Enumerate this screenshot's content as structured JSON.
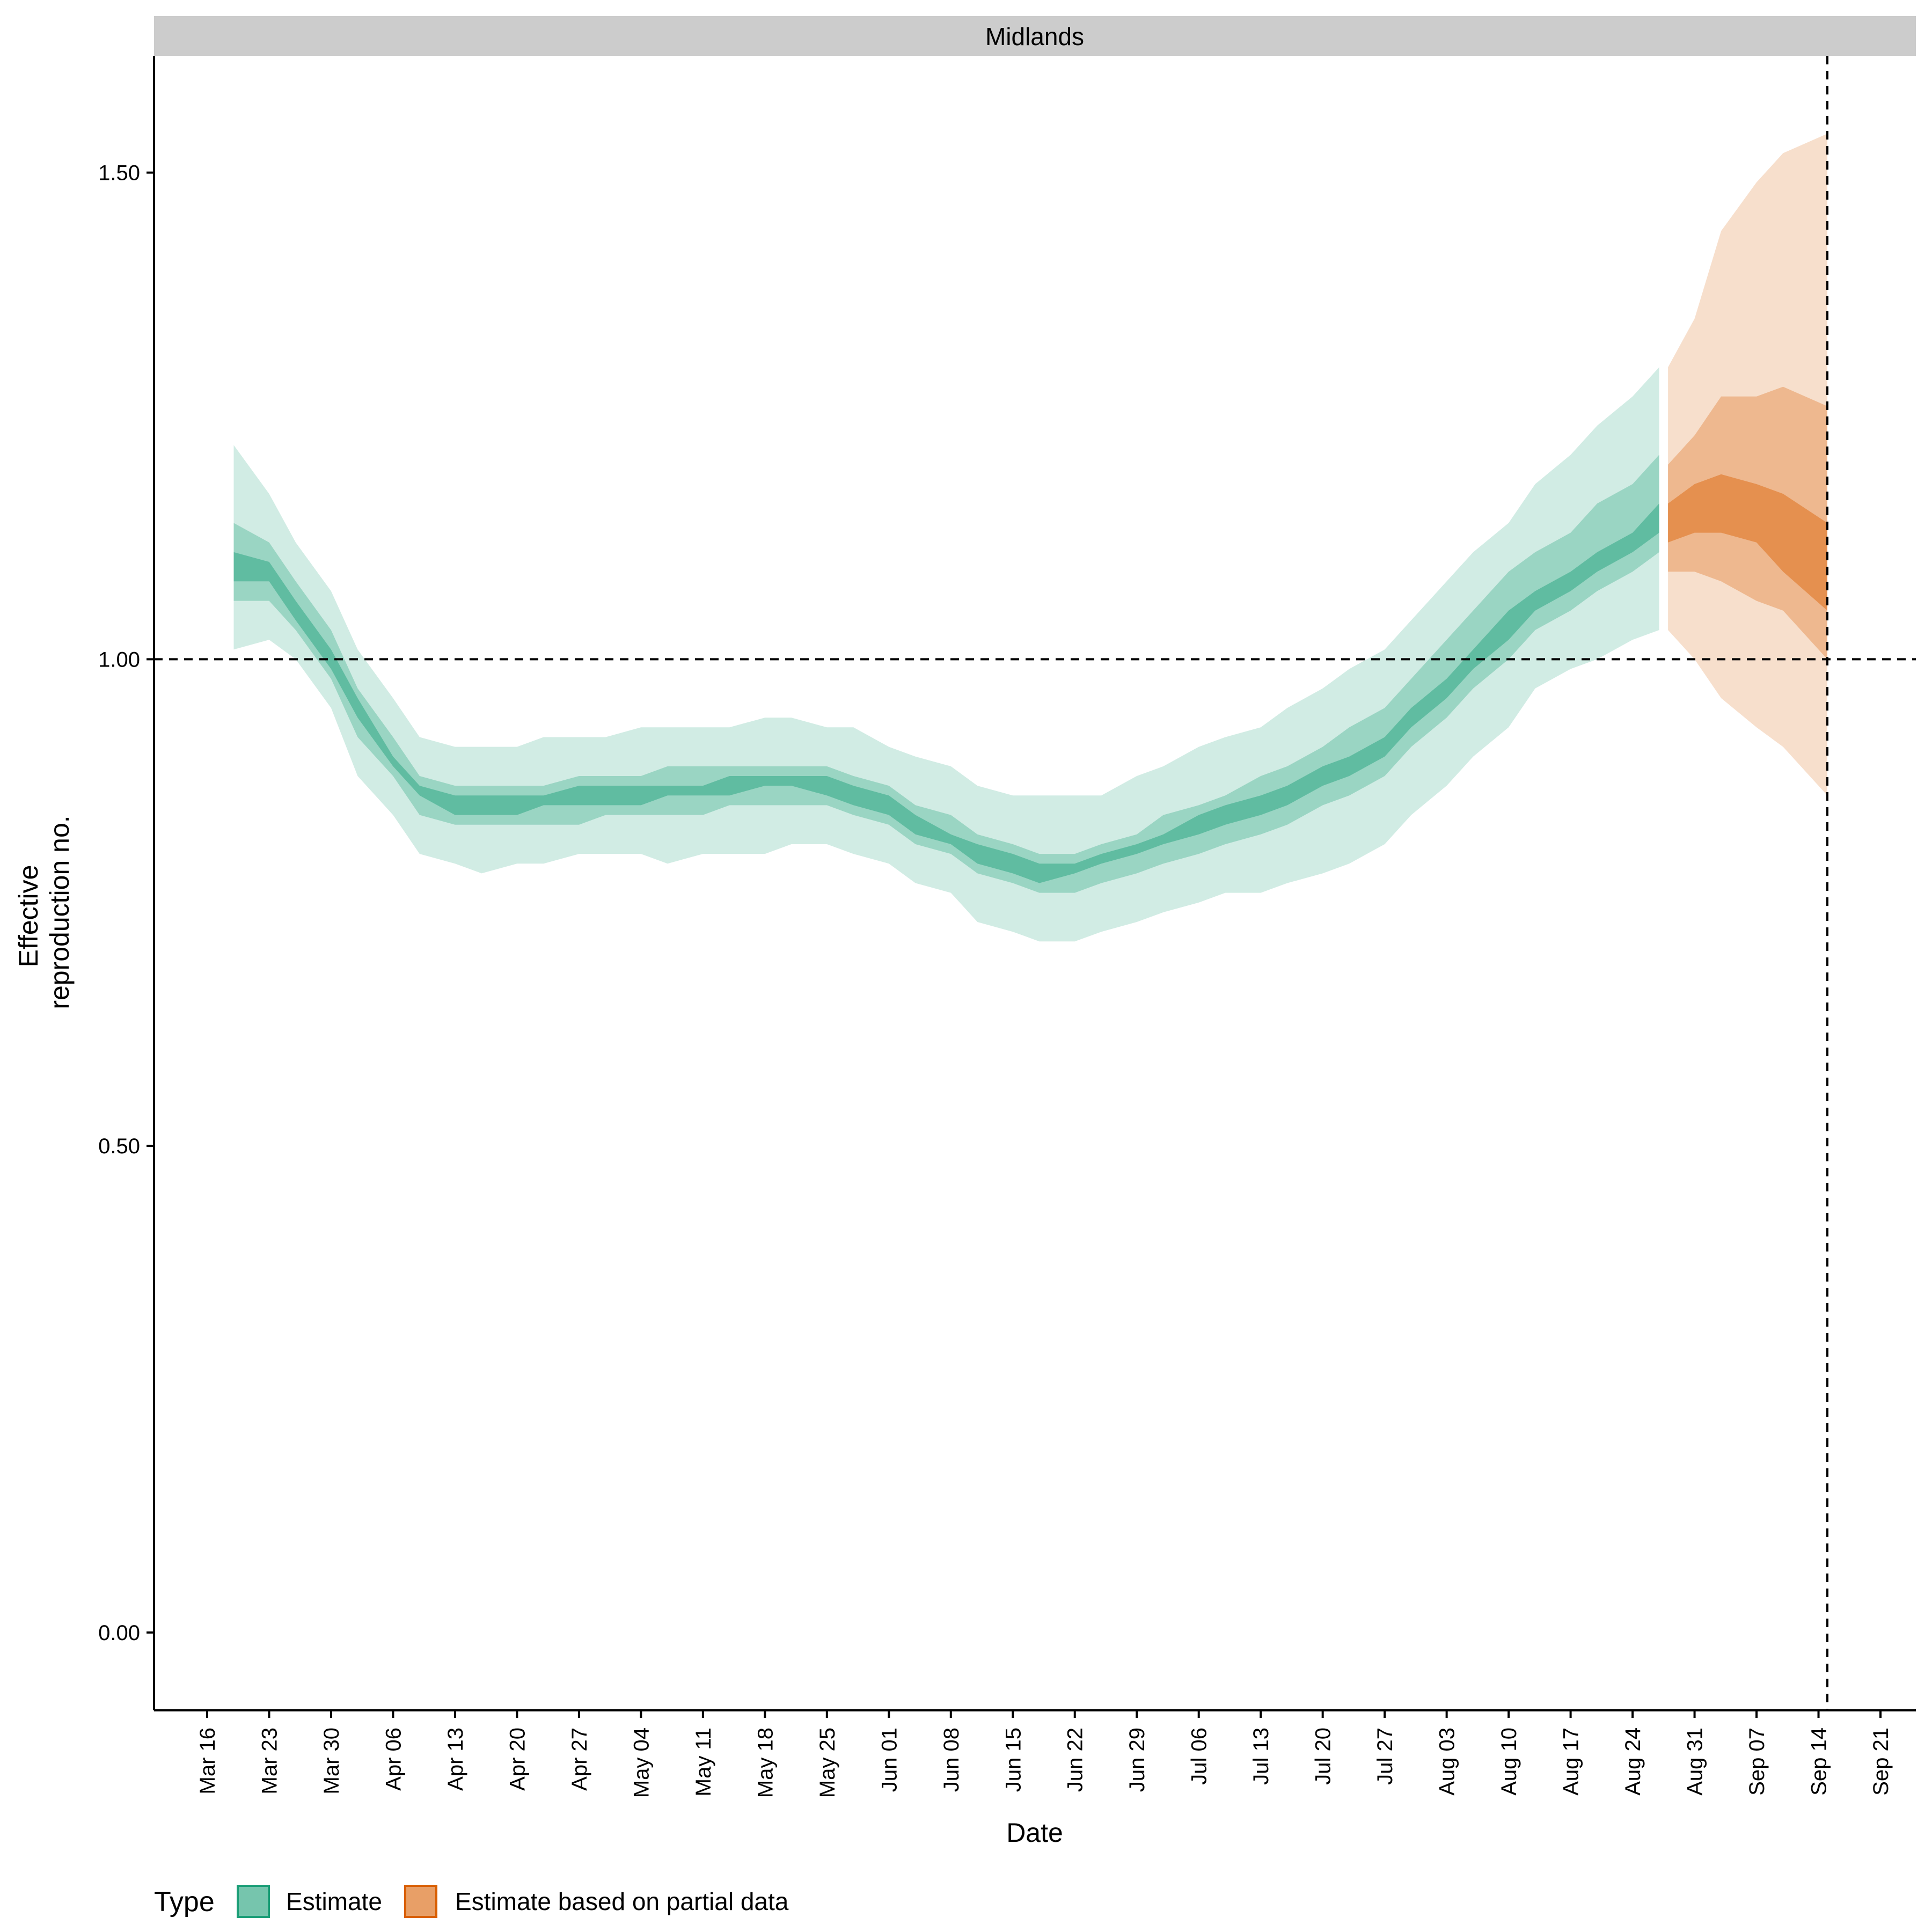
{
  "chart_data": {
    "type": "area",
    "panel_title": "Midlands",
    "xlabel": "Date",
    "ylabel_lines": [
      "Effective",
      "reproduction no."
    ],
    "ylim": [
      -0.08,
      1.62
    ],
    "xlim": [
      "2020-03-10",
      "2020-09-25"
    ],
    "y_ticks": [
      0.0,
      0.5,
      1.0,
      1.5
    ],
    "y_tick_labels": [
      "0.00",
      "0.50",
      "1.00",
      "1.50"
    ],
    "x_ticks": [
      "2020-03-16",
      "2020-03-23",
      "2020-03-30",
      "2020-04-06",
      "2020-04-13",
      "2020-04-20",
      "2020-04-27",
      "2020-05-04",
      "2020-05-11",
      "2020-05-18",
      "2020-05-25",
      "2020-06-01",
      "2020-06-08",
      "2020-06-15",
      "2020-06-22",
      "2020-06-29",
      "2020-07-06",
      "2020-07-13",
      "2020-07-20",
      "2020-07-27",
      "2020-08-03",
      "2020-08-10",
      "2020-08-17",
      "2020-08-24",
      "2020-08-31",
      "2020-09-07",
      "2020-09-14",
      "2020-09-21"
    ],
    "x_tick_labels": [
      "Mar 16",
      "Mar 23",
      "Mar 30",
      "Apr 06",
      "Apr 13",
      "Apr 20",
      "Apr 27",
      "May 04",
      "May 11",
      "May 18",
      "May 25",
      "Jun 01",
      "Jun 08",
      "Jun 15",
      "Jun 22",
      "Jun 29",
      "Jul 06",
      "Jul 13",
      "Jul 20",
      "Jul 27",
      "Aug 03",
      "Aug 10",
      "Aug 17",
      "Aug 24",
      "Aug 31",
      "Sep 07",
      "Sep 14",
      "Sep 21"
    ],
    "reference_lines": {
      "hline_y": 1.0,
      "vline_date": "2020-09-15"
    },
    "grid": false,
    "legend": {
      "position": "bottom-left",
      "title": "Type",
      "entries": [
        {
          "label": "Estimate",
          "color": "#1b9e77"
        },
        {
          "label": "Estimate based on partial data",
          "color": "#d95f02"
        }
      ]
    },
    "series": [
      {
        "name": "Estimate",
        "color": "#1b9e77",
        "dates": [
          "2020-03-19",
          "2020-03-23",
          "2020-03-26",
          "2020-03-30",
          "2020-04-02",
          "2020-04-06",
          "2020-04-09",
          "2020-04-13",
          "2020-04-16",
          "2020-04-20",
          "2020-04-23",
          "2020-04-27",
          "2020-04-30",
          "2020-05-04",
          "2020-05-07",
          "2020-05-11",
          "2020-05-14",
          "2020-05-18",
          "2020-05-21",
          "2020-05-25",
          "2020-05-28",
          "2020-06-01",
          "2020-06-04",
          "2020-06-08",
          "2020-06-11",
          "2020-06-15",
          "2020-06-18",
          "2020-06-22",
          "2020-06-25",
          "2020-06-29",
          "2020-07-02",
          "2020-07-06",
          "2020-07-09",
          "2020-07-13",
          "2020-07-16",
          "2020-07-20",
          "2020-07-23",
          "2020-07-27",
          "2020-07-30",
          "2020-08-03",
          "2020-08-06",
          "2020-08-10",
          "2020-08-13",
          "2020-08-17",
          "2020-08-20",
          "2020-08-24",
          "2020-08-27"
        ],
        "lower_90": [
          1.01,
          1.02,
          1.0,
          0.95,
          0.88,
          0.84,
          0.8,
          0.79,
          0.78,
          0.79,
          0.79,
          0.8,
          0.8,
          0.8,
          0.79,
          0.8,
          0.8,
          0.8,
          0.81,
          0.81,
          0.8,
          0.79,
          0.77,
          0.76,
          0.73,
          0.72,
          0.71,
          0.71,
          0.72,
          0.73,
          0.74,
          0.75,
          0.76,
          0.76,
          0.77,
          0.78,
          0.79,
          0.81,
          0.84,
          0.87,
          0.9,
          0.93,
          0.97,
          0.99,
          1.0,
          1.02,
          1.03
        ],
        "lower_50": [
          1.06,
          1.06,
          1.03,
          0.98,
          0.92,
          0.88,
          0.84,
          0.83,
          0.83,
          0.83,
          0.83,
          0.83,
          0.84,
          0.84,
          0.84,
          0.84,
          0.85,
          0.85,
          0.85,
          0.85,
          0.84,
          0.83,
          0.81,
          0.8,
          0.78,
          0.77,
          0.76,
          0.76,
          0.77,
          0.78,
          0.79,
          0.8,
          0.81,
          0.82,
          0.83,
          0.85,
          0.86,
          0.88,
          0.91,
          0.94,
          0.97,
          1.0,
          1.03,
          1.05,
          1.07,
          1.09,
          1.11
        ],
        "lower_20": [
          1.08,
          1.08,
          1.04,
          0.99,
          0.94,
          0.89,
          0.86,
          0.84,
          0.84,
          0.84,
          0.85,
          0.85,
          0.85,
          0.85,
          0.86,
          0.86,
          0.86,
          0.87,
          0.87,
          0.86,
          0.85,
          0.84,
          0.82,
          0.81,
          0.79,
          0.78,
          0.77,
          0.78,
          0.79,
          0.8,
          0.81,
          0.82,
          0.83,
          0.84,
          0.85,
          0.87,
          0.88,
          0.9,
          0.93,
          0.96,
          0.99,
          1.02,
          1.05,
          1.07,
          1.09,
          1.11,
          1.13
        ],
        "upper_20": [
          1.11,
          1.1,
          1.06,
          1.01,
          0.96,
          0.9,
          0.87,
          0.86,
          0.86,
          0.86,
          0.86,
          0.87,
          0.87,
          0.87,
          0.87,
          0.87,
          0.88,
          0.88,
          0.88,
          0.88,
          0.87,
          0.86,
          0.84,
          0.82,
          0.81,
          0.8,
          0.79,
          0.79,
          0.8,
          0.81,
          0.82,
          0.84,
          0.85,
          0.86,
          0.87,
          0.89,
          0.9,
          0.92,
          0.95,
          0.98,
          1.01,
          1.05,
          1.07,
          1.09,
          1.11,
          1.13,
          1.16
        ],
        "upper_50": [
          1.14,
          1.12,
          1.08,
          1.03,
          0.97,
          0.92,
          0.88,
          0.87,
          0.87,
          0.87,
          0.87,
          0.88,
          0.88,
          0.88,
          0.89,
          0.89,
          0.89,
          0.89,
          0.89,
          0.89,
          0.88,
          0.87,
          0.85,
          0.84,
          0.82,
          0.81,
          0.8,
          0.8,
          0.81,
          0.82,
          0.84,
          0.85,
          0.86,
          0.88,
          0.89,
          0.91,
          0.93,
          0.95,
          0.98,
          1.02,
          1.05,
          1.09,
          1.11,
          1.13,
          1.16,
          1.18,
          1.21
        ],
        "upper_90": [
          1.22,
          1.17,
          1.12,
          1.07,
          1.01,
          0.96,
          0.92,
          0.91,
          0.91,
          0.91,
          0.92,
          0.92,
          0.92,
          0.93,
          0.93,
          0.93,
          0.93,
          0.94,
          0.94,
          0.93,
          0.93,
          0.91,
          0.9,
          0.89,
          0.87,
          0.86,
          0.86,
          0.86,
          0.86,
          0.88,
          0.89,
          0.91,
          0.92,
          0.93,
          0.95,
          0.97,
          0.99,
          1.01,
          1.04,
          1.08,
          1.11,
          1.14,
          1.18,
          1.21,
          1.24,
          1.27,
          1.3
        ]
      },
      {
        "name": "Estimate based on partial data",
        "color": "#d95f02",
        "dates": [
          "2020-08-28",
          "2020-08-31",
          "2020-09-03",
          "2020-09-07",
          "2020-09-10",
          "2020-09-15"
        ],
        "lower_90": [
          1.03,
          1.0,
          0.96,
          0.93,
          0.91,
          0.86
        ],
        "lower_50": [
          1.09,
          1.09,
          1.08,
          1.06,
          1.05,
          1.0
        ],
        "lower_20": [
          1.12,
          1.13,
          1.13,
          1.12,
          1.09,
          1.05
        ],
        "upper_20": [
          1.16,
          1.18,
          1.19,
          1.18,
          1.17,
          1.14
        ],
        "upper_50": [
          1.2,
          1.23,
          1.27,
          1.27,
          1.28,
          1.26
        ],
        "upper_90": [
          1.3,
          1.35,
          1.44,
          1.49,
          1.52,
          1.54
        ]
      }
    ]
  }
}
